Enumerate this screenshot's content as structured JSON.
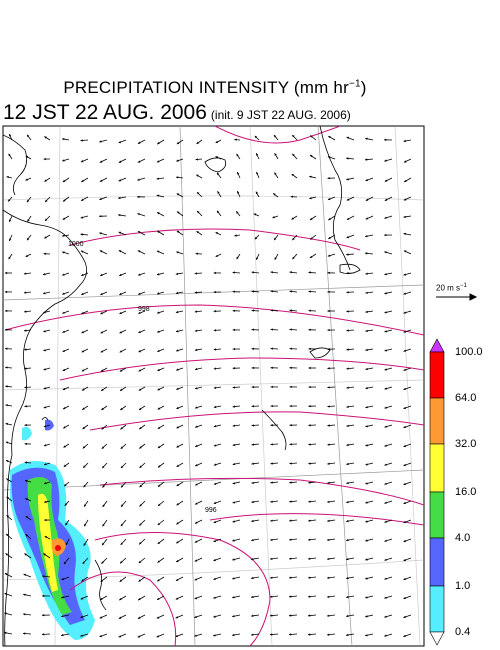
{
  "title": {
    "text": "PRECIPITATION INTENSITY (mm hr",
    "unit_exp": "−1",
    "close": ")"
  },
  "subtitle": {
    "valid_time": "12 JST 22 AUG. 2006",
    "init_time": "(init. 9 JST 22 AUG. 2006)"
  },
  "wind_reference": {
    "label": "20 m s",
    "exp": "−1"
  },
  "isobar_labels": [
    "1000",
    "998",
    "996"
  ],
  "colorbar": {
    "labels": [
      "100.0",
      "64.0",
      "32.0",
      "16.0",
      "4.0",
      "1.0",
      "0.4"
    ],
    "colors": {
      "over": "#cc33ff",
      "c64_100": "#ff0000",
      "c32_64": "#ff9933",
      "c16_32": "#ffff33",
      "c4_16": "#44dd44",
      "c1_4": "#5566ff",
      "c04_1": "#55eeff"
    }
  },
  "colors": {
    "isobar": "#cc1177",
    "coast": "#000000",
    "grid": "#999999"
  }
}
